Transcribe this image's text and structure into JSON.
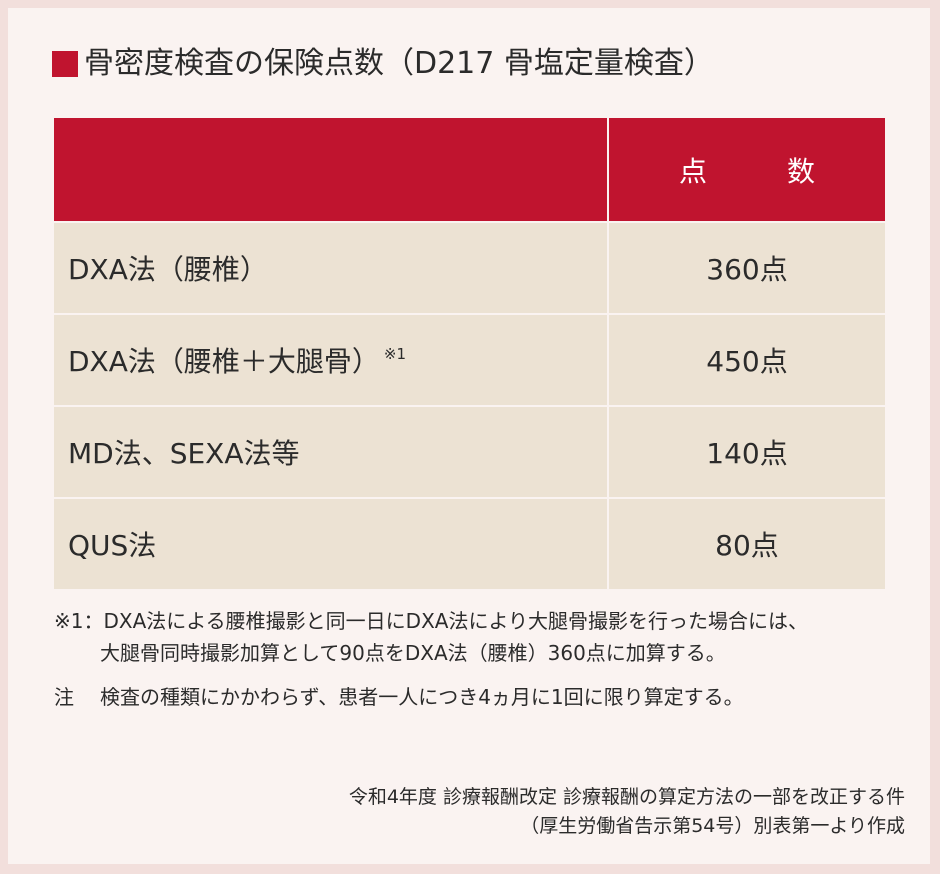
{
  "heading": "骨密度検査の保険点数（D217 骨塩定量検査）",
  "table": {
    "headers": [
      "",
      "点　数"
    ],
    "rows": [
      {
        "name": "DXA法（腰椎）",
        "note": "",
        "points": "360点"
      },
      {
        "name": "DXA法（腰椎＋大腿骨）",
        "note": "※1",
        "points": "450点"
      },
      {
        "name": "MD法、SEXA法等",
        "note": "",
        "points": "140点"
      },
      {
        "name": "QUS法",
        "note": "",
        "points": "80点"
      }
    ]
  },
  "notes": {
    "note1_line1": "※1：DXA法による腰椎撮影と同一日にDXA法により大腿骨撮影を行った場合には、",
    "note1_line2": "大腿骨同時撮影加算として90点をDXA法（腰椎）360点に加算する。",
    "note2_label": "注",
    "note2_text": "検査の種類にかかわらず、患者一人につき4ヵ月に1回に限り算定する。"
  },
  "source": {
    "line1": "令和4年度 診療報酬改定 診療報酬の算定方法の一部を改正する件",
    "line2": "（厚生労働省告示第54号）別表第一より作成"
  },
  "colors": {
    "accent": "#c0142f",
    "row_bg": "#ece2d3",
    "panel_bg": "#faf3f1",
    "frame_bg": "#f2dfdc"
  }
}
